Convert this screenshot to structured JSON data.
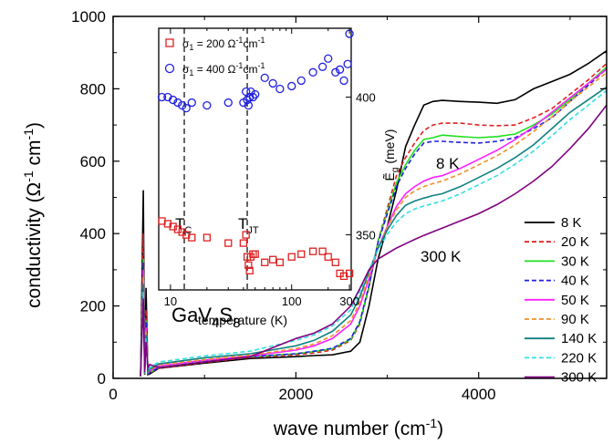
{
  "chart_data": [
    {
      "type": "line",
      "xlabel": "wave number (cm",
      "xlabel_sup": "-1",
      "xlabel_end": ")",
      "ylabel": "conductivity (Ω",
      "ylabel_sup1": "-1",
      "ylabel_mid": " cm",
      "ylabel_sup2": "-1",
      "ylabel_end": ")",
      "xlim": [
        0,
        5400
      ],
      "ylim": [
        0,
        1000
      ],
      "xticks": [
        0,
        2000,
        4000
      ],
      "yticks": [
        0,
        200,
        400,
        600,
        800,
        1000
      ],
      "sample_label": {
        "base": "GaV",
        "sub1": "4",
        "mid": "S",
        "sub2": "8"
      },
      "annotations": [
        "8 K",
        "300 K"
      ],
      "legend_position": "bottom-right",
      "series": [
        {
          "name": "8 K",
          "color": "#000000",
          "dash": "solid",
          "x": [
            300,
            330,
            345,
            360,
            380,
            400,
            500,
            1000,
            1500,
            2000,
            2200,
            2400,
            2600,
            2700,
            2800,
            2900,
            3000,
            3100,
            3200,
            3300,
            3400,
            3500,
            3600,
            3800,
            4000,
            4200,
            4400,
            4600,
            4800,
            5000,
            5200,
            5400
          ],
          "y": [
            5,
            520,
            10,
            250,
            10,
            12,
            28,
            42,
            55,
            60,
            63,
            65,
            75,
            100,
            200,
            330,
            420,
            520,
            640,
            700,
            755,
            765,
            768,
            765,
            763,
            760,
            770,
            800,
            820,
            840,
            870,
            905
          ]
        },
        {
          "name": "20 K",
          "color": "#e02020",
          "dash": "dash",
          "x": [
            300,
            330,
            345,
            360,
            380,
            400,
            500,
            1000,
            1500,
            2000,
            2200,
            2400,
            2600,
            2700,
            2800,
            2900,
            3000,
            3100,
            3200,
            3300,
            3400,
            3500,
            3600,
            3800,
            4000,
            4200,
            4400,
            4600,
            4800,
            5000,
            5200,
            5400
          ],
          "y": [
            5,
            400,
            12,
            190,
            12,
            15,
            28,
            44,
            58,
            65,
            70,
            78,
            105,
            150,
            250,
            380,
            470,
            560,
            610,
            650,
            685,
            700,
            705,
            705,
            700,
            698,
            700,
            720,
            745,
            785,
            825,
            870
          ]
        },
        {
          "name": "30 K",
          "color": "#20e020",
          "dash": "solid",
          "x": [
            300,
            330,
            345,
            360,
            380,
            400,
            500,
            1000,
            1500,
            2000,
            2200,
            2400,
            2600,
            2700,
            2800,
            2900,
            3000,
            3100,
            3200,
            3300,
            3400,
            3500,
            3600,
            3800,
            4000,
            4200,
            4400,
            4600,
            4800,
            5000,
            5200,
            5400
          ],
          "y": [
            5,
            330,
            12,
            160,
            12,
            16,
            30,
            46,
            60,
            68,
            74,
            82,
            108,
            155,
            255,
            378,
            460,
            540,
            590,
            630,
            660,
            665,
            672,
            668,
            665,
            668,
            675,
            700,
            730,
            770,
            815,
            860
          ]
        },
        {
          "name": "40 K",
          "color": "#2020e0",
          "dash": "dash",
          "x": [
            300,
            330,
            345,
            360,
            380,
            400,
            500,
            1000,
            1500,
            2000,
            2200,
            2400,
            2600,
            2700,
            2800,
            2900,
            3000,
            3100,
            3200,
            3300,
            3400,
            3500,
            3600,
            3800,
            4000,
            4200,
            4400,
            4600,
            4800,
            5000,
            5200,
            5400
          ],
          "y": [
            5,
            320,
            12,
            155,
            12,
            16,
            30,
            46,
            60,
            68,
            75,
            83,
            110,
            157,
            256,
            376,
            455,
            530,
            580,
            620,
            650,
            655,
            655,
            652,
            650,
            655,
            665,
            690,
            720,
            765,
            810,
            855
          ]
        },
        {
          "name": "50 K",
          "color": "#ff20ff",
          "dash": "solid",
          "x": [
            300,
            330,
            345,
            360,
            380,
            400,
            500,
            1000,
            1500,
            2000,
            2200,
            2400,
            2600,
            2700,
            2800,
            2900,
            3000,
            3100,
            3200,
            3300,
            3400,
            3500,
            3600,
            3800,
            4000,
            4200,
            4400,
            4600,
            4800,
            5000,
            5200,
            5400
          ],
          "y": [
            5,
            300,
            14,
            140,
            15,
            20,
            35,
            50,
            62,
            78,
            90,
            110,
            150,
            200,
            275,
            360,
            420,
            475,
            510,
            530,
            545,
            555,
            560,
            580,
            605,
            630,
            660,
            695,
            735,
            775,
            815,
            855
          ]
        },
        {
          "name": "90 K",
          "color": "#f0902a",
          "dash": "dash",
          "x": [
            300,
            330,
            345,
            360,
            380,
            400,
            500,
            1000,
            1500,
            2000,
            2200,
            2400,
            2600,
            2700,
            2800,
            2900,
            3000,
            3100,
            3200,
            3300,
            3400,
            3500,
            3600,
            3800,
            4000,
            4200,
            4400,
            4600,
            4800,
            5000,
            5200,
            5400
          ],
          "y": [
            5,
            280,
            14,
            130,
            16,
            22,
            37,
            52,
            64,
            82,
            95,
            118,
            160,
            210,
            285,
            360,
            418,
            465,
            500,
            518,
            530,
            538,
            545,
            565,
            590,
            615,
            645,
            682,
            722,
            765,
            805,
            845
          ]
        },
        {
          "name": "140 K",
          "color": "#108080",
          "dash": "solid",
          "x": [
            300,
            330,
            345,
            360,
            380,
            400,
            500,
            1000,
            1500,
            2000,
            2200,
            2400,
            2600,
            2700,
            2800,
            2900,
            3000,
            3100,
            3200,
            3300,
            3400,
            3500,
            3600,
            3800,
            4000,
            4200,
            4400,
            4600,
            4800,
            5000,
            5200,
            5400
          ],
          "y": [
            5,
            260,
            15,
            120,
            18,
            25,
            40,
            57,
            68,
            90,
            105,
            130,
            175,
            225,
            295,
            360,
            410,
            450,
            478,
            490,
            498,
            505,
            510,
            530,
            555,
            580,
            610,
            645,
            690,
            735,
            770,
            805
          ]
        },
        {
          "name": "220 K",
          "color": "#30e0e0",
          "dash": "dash",
          "x": [
            300,
            330,
            345,
            360,
            380,
            400,
            500,
            1000,
            1500,
            2000,
            2200,
            2400,
            2600,
            2700,
            2800,
            2900,
            3000,
            3100,
            3200,
            3300,
            3400,
            3500,
            3600,
            3800,
            4000,
            4200,
            4400,
            4600,
            4800,
            5000,
            5200,
            5400
          ],
          "y": [
            5,
            240,
            16,
            110,
            22,
            30,
            45,
            62,
            75,
            105,
            120,
            145,
            190,
            240,
            300,
            355,
            398,
            432,
            455,
            468,
            476,
            483,
            490,
            510,
            535,
            560,
            592,
            628,
            670,
            715,
            755,
            795
          ]
        },
        {
          "name": "300 K",
          "color": "#800080",
          "dash": "solid",
          "x": [
            300,
            330,
            345,
            360,
            380,
            400,
            500,
            1000,
            1500,
            2000,
            2200,
            2400,
            2600,
            2700,
            2800,
            2900,
            3000,
            3100,
            3200,
            3300,
            3400,
            3500,
            3600,
            3800,
            4000,
            4200,
            4400,
            4600,
            4800,
            5000,
            5200,
            5400
          ],
          "y": [
            5,
            220,
            18,
            100,
            28,
            38,
            30,
            45,
            60,
            110,
            125,
            150,
            200,
            248,
            300,
            330,
            345,
            360,
            372,
            384,
            395,
            405,
            415,
            435,
            455,
            480,
            510,
            545,
            585,
            635,
            690,
            755
          ]
        }
      ]
    },
    {
      "type": "scatter",
      "xlabel": "temperature (K)",
      "ylabel": "meV",
      "ylabel_symbol": "Ẽ",
      "ylabel_sub": "g",
      "xscale": "log",
      "xlim": [
        8,
        310
      ],
      "ylim": [
        330,
        425
      ],
      "xticks": [
        10,
        100,
        300
      ],
      "yticks": [
        350,
        400
      ],
      "vlines": [
        {
          "x": 13,
          "label": "T",
          "label_sub": "C"
        },
        {
          "x": 43,
          "label": "T",
          "label_sub": "JT"
        }
      ],
      "series": [
        {
          "name": "σ",
          "sub": "1",
          "rest": " = 200 Ω",
          "sup1": "-1",
          "mid": "cm",
          "sup2": "-1",
          "marker": "square",
          "color": "#e02020",
          "x": [
            8.5,
            9.5,
            10.5,
            11.5,
            12.5,
            13.5,
            15,
            20,
            30,
            40,
            42,
            43,
            44,
            45,
            46,
            48,
            50,
            60,
            70,
            80,
            100,
            120,
            150,
            180,
            200,
            230,
            250,
            270,
            300
          ],
          "y": [
            355,
            354,
            353,
            352,
            351,
            350,
            349,
            349,
            347,
            347,
            350,
            342,
            339,
            337,
            342,
            343,
            343,
            340,
            341,
            340,
            342,
            343,
            344,
            344,
            342,
            340,
            336,
            335,
            336
          ]
        },
        {
          "name": "σ",
          "sub": "1",
          "rest": " = 400 Ω",
          "sup1": "-1",
          "mid": "cm",
          "sup2": "-1",
          "marker": "circle",
          "color": "#2020e0",
          "x": [
            8.5,
            9.5,
            10.5,
            11.5,
            12.5,
            13.5,
            15,
            20,
            30,
            40,
            42,
            43,
            44,
            45,
            46,
            48,
            50,
            60,
            70,
            80,
            100,
            120,
            150,
            180,
            200,
            230,
            250,
            270,
            290,
            300
          ],
          "y": [
            400,
            400,
            399,
            398,
            397,
            396,
            398,
            397,
            398,
            398,
            402,
            399,
            397,
            400,
            402,
            400,
            401,
            407,
            405,
            403,
            404,
            406,
            409,
            411,
            414,
            409,
            410,
            406,
            412,
            423
          ]
        }
      ]
    }
  ],
  "legend_entries": [
    "8 K",
    "20 K",
    "30 K",
    "40 K",
    "50 K",
    "90 K",
    "140 K",
    "220 K",
    "300 K"
  ]
}
